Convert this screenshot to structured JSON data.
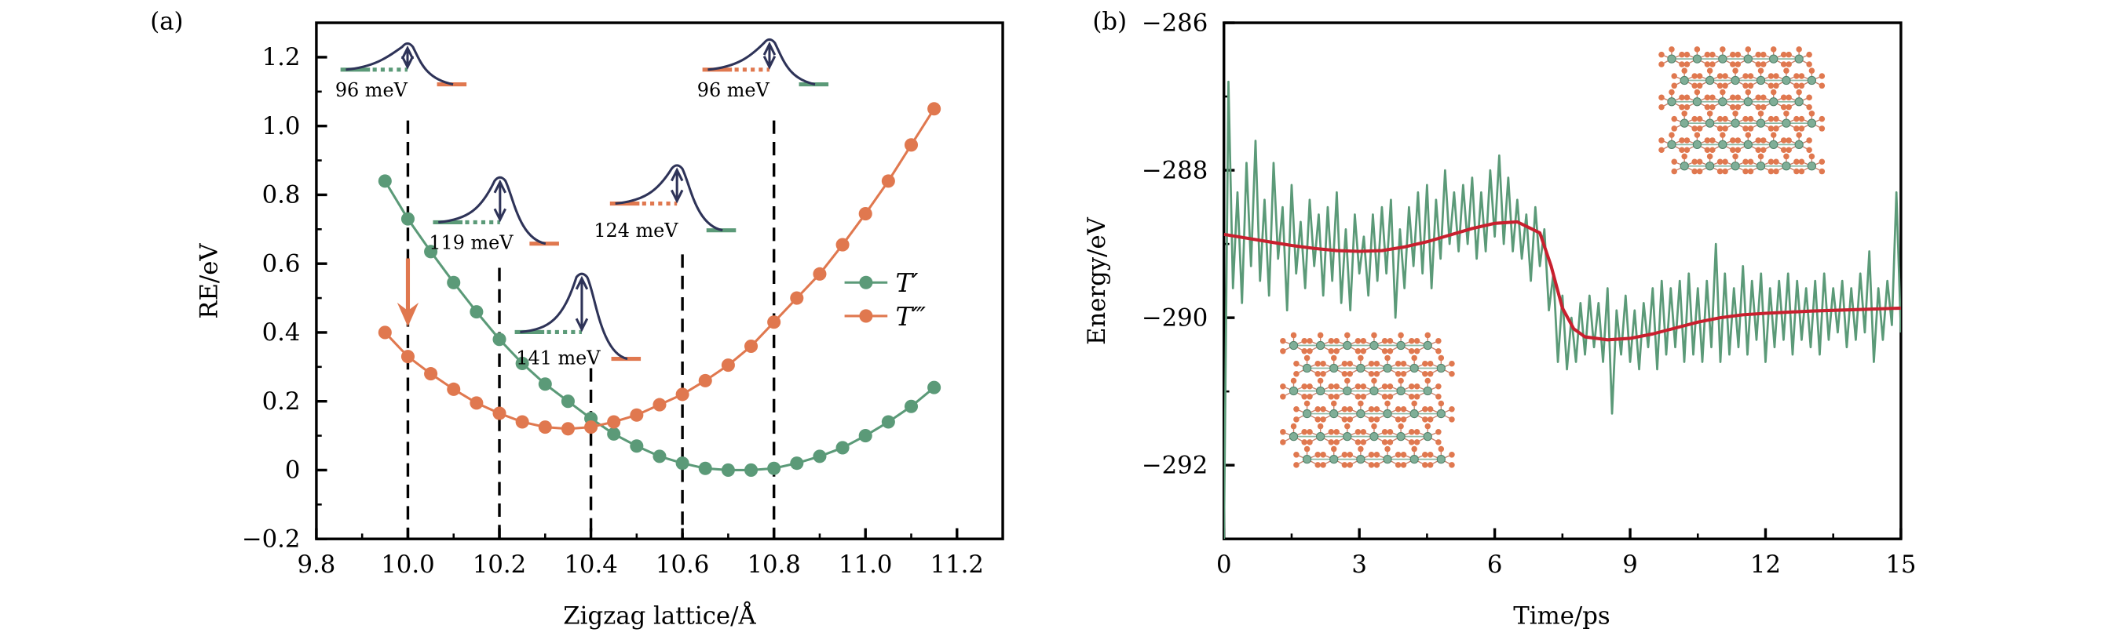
{
  "colors": {
    "green": "#5b9a78",
    "orange": "#e0784f",
    "red": "#c8202e",
    "navy": "#2e3358",
    "axis": "#000000"
  },
  "chart_data": [
    {
      "panel_label": "(a)",
      "type": "line",
      "xlabel": "Zigzag lattice/Å",
      "ylabel": "RE/eV",
      "xlim": [
        9.8,
        11.3
      ],
      "ylim": [
        -0.2,
        1.3
      ],
      "xticks": [
        "9.8",
        "10.0",
        "10.2",
        "10.4",
        "10.6",
        "10.8",
        "11.0",
        "11.2"
      ],
      "yticks": [
        "−0.2",
        "0",
        "0.2",
        "0.4",
        "0.6",
        "0.8",
        "1.0",
        "1.2"
      ],
      "grid": false,
      "legend_position": "right",
      "x": [
        9.95,
        10.0,
        10.05,
        10.1,
        10.15,
        10.2,
        10.25,
        10.3,
        10.35,
        10.4,
        10.45,
        10.5,
        10.55,
        10.6,
        10.65,
        10.7,
        10.75,
        10.8,
        10.85,
        10.9,
        10.95,
        11.0,
        11.05,
        11.1,
        11.15
      ],
      "series": [
        {
          "name": "T′",
          "color": "#5b9a78",
          "values": [
            0.84,
            0.73,
            0.635,
            0.545,
            0.46,
            0.38,
            0.31,
            0.25,
            0.2,
            0.15,
            0.105,
            0.07,
            0.04,
            0.02,
            0.005,
            0.0,
            0.0,
            0.005,
            0.02,
            0.04,
            0.065,
            0.1,
            0.14,
            0.185,
            0.24
          ]
        },
        {
          "name": "T‴",
          "color": "#e0784f",
          "values": [
            0.4,
            0.33,
            0.28,
            0.235,
            0.195,
            0.165,
            0.14,
            0.125,
            0.12,
            0.125,
            0.14,
            0.16,
            0.19,
            0.22,
            0.26,
            0.305,
            0.36,
            0.43,
            0.5,
            0.57,
            0.655,
            0.745,
            0.84,
            0.945,
            1.05
          ]
        }
      ],
      "reference_lines_x": [
        10.0,
        10.2,
        10.4,
        10.6,
        10.8
      ],
      "annotations": [
        {
          "text": "96 meV",
          "x": 10.0,
          "from": "T′",
          "to": "T‴"
        },
        {
          "text": "119 meV",
          "x": 10.2,
          "from": "T′",
          "to": "T‴"
        },
        {
          "text": "141 meV",
          "x": 10.4,
          "from": "T′",
          "to": "T‴"
        },
        {
          "text": "124 meV",
          "x": 10.6,
          "from": "T‴",
          "to": "T′"
        },
        {
          "text": "96 meV",
          "x": 10.8,
          "from": "T‴",
          "to": "T′"
        }
      ]
    },
    {
      "panel_label": "(b)",
      "type": "line",
      "xlabel": "Time/ps",
      "ylabel": "Energy/eV",
      "xlim": [
        0,
        15
      ],
      "ylim": [
        -293,
        -286
      ],
      "xticks": [
        "0",
        "3",
        "6",
        "9",
        "12",
        "15"
      ],
      "yticks": [
        "−292",
        "−290",
        "−288",
        "−286"
      ],
      "grid": false,
      "series": [
        {
          "color": "#5b9a78",
          "x": [
            0,
            0.1,
            0.2,
            0.3,
            0.4,
            0.5,
            0.6,
            0.7,
            0.8,
            0.9,
            1,
            1.1,
            1.2,
            1.3,
            1.4,
            1.5,
            1.6,
            1.7,
            1.8,
            1.9,
            2,
            2.1,
            2.2,
            2.3,
            2.4,
            2.5,
            2.6,
            2.7,
            2.8,
            2.9,
            3,
            3.1,
            3.2,
            3.3,
            3.4,
            3.5,
            3.6,
            3.7,
            3.8,
            3.9,
            4,
            4.1,
            4.2,
            4.3,
            4.4,
            4.5,
            4.6,
            4.7,
            4.8,
            4.9,
            5,
            5.1,
            5.2,
            5.3,
            5.4,
            5.5,
            5.6,
            5.7,
            5.8,
            5.9,
            6,
            6.1,
            6.2,
            6.3,
            6.4,
            6.5,
            6.6,
            6.7,
            6.8,
            6.9,
            7,
            7.1,
            7.2,
            7.3,
            7.4,
            7.5,
            7.6,
            7.7,
            7.8,
            7.9,
            8,
            8.1,
            8.2,
            8.3,
            8.4,
            8.5,
            8.6,
            8.7,
            8.8,
            8.9,
            9,
            9.1,
            9.2,
            9.3,
            9.4,
            9.5,
            9.6,
            9.7,
            9.8,
            9.9,
            10,
            10.1,
            10.2,
            10.3,
            10.4,
            10.5,
            10.6,
            10.7,
            10.8,
            10.9,
            11,
            11.1,
            11.2,
            11.3,
            11.4,
            11.5,
            11.6,
            11.7,
            11.8,
            11.9,
            12,
            12.1,
            12.2,
            12.3,
            12.4,
            12.5,
            12.6,
            12.7,
            12.8,
            12.9,
            13,
            13.1,
            13.2,
            13.3,
            13.4,
            13.5,
            13.6,
            13.7,
            13.8,
            13.9,
            14,
            14.1,
            14.2,
            14.3,
            14.4,
            14.5,
            14.6,
            14.7,
            14.8,
            14.9,
            15
          ],
          "values": [
            -293.0,
            -286.8,
            -289.6,
            -288.3,
            -289.8,
            -287.9,
            -289.3,
            -287.6,
            -289.5,
            -288.4,
            -289.7,
            -287.9,
            -289.2,
            -288.5,
            -289.9,
            -288.2,
            -289.4,
            -288.7,
            -289.6,
            -288.4,
            -289.3,
            -288.6,
            -289.7,
            -288.5,
            -289.5,
            -288.3,
            -289.8,
            -288.8,
            -289.9,
            -288.6,
            -289.4,
            -288.9,
            -289.7,
            -288.6,
            -289.5,
            -288.5,
            -289.4,
            -288.4,
            -290.0,
            -288.8,
            -289.6,
            -288.5,
            -289.3,
            -288.3,
            -289.4,
            -288.2,
            -289.6,
            -288.4,
            -289.2,
            -288.0,
            -289.0,
            -288.3,
            -289.1,
            -288.2,
            -289.0,
            -288.1,
            -289.2,
            -288.3,
            -289.1,
            -288.0,
            -288.9,
            -287.8,
            -289.0,
            -288.1,
            -289.1,
            -288.4,
            -289.2,
            -288.6,
            -289.5,
            -288.5,
            -289.3,
            -288.8,
            -289.9,
            -289.4,
            -290.6,
            -289.7,
            -290.7,
            -290.0,
            -290.6,
            -289.8,
            -290.5,
            -289.7,
            -290.4,
            -289.8,
            -290.6,
            -289.6,
            -291.3,
            -289.9,
            -290.5,
            -289.7,
            -290.6,
            -289.9,
            -290.7,
            -289.8,
            -290.4,
            -289.6,
            -290.7,
            -289.5,
            -290.5,
            -289.6,
            -290.4,
            -289.5,
            -290.6,
            -289.4,
            -290.5,
            -289.6,
            -290.6,
            -289.5,
            -290.4,
            -289.0,
            -290.6,
            -289.4,
            -290.5,
            -289.6,
            -290.4,
            -289.3,
            -290.5,
            -289.5,
            -290.3,
            -289.4,
            -290.6,
            -289.6,
            -290.4,
            -289.5,
            -290.3,
            -289.4,
            -290.5,
            -289.5,
            -290.3,
            -289.6,
            -290.4,
            -289.5,
            -290.5,
            -289.4,
            -290.3,
            -289.6,
            -290.2,
            -289.5,
            -290.4,
            -289.6,
            -290.3,
            -289.4,
            -290.2,
            -289.1,
            -290.6,
            -289.6,
            -290.3,
            -289.5,
            -290.1,
            -288.3,
            -290.2
          ]
        },
        {
          "color": "#c8202e",
          "x": [
            0,
            0.5,
            1,
            1.5,
            2,
            2.5,
            3,
            3.5,
            4,
            4.5,
            5,
            5.5,
            6,
            6.5,
            7,
            7.25,
            7.5,
            7.75,
            8,
            8.5,
            9,
            9.5,
            10,
            10.5,
            11,
            11.5,
            12,
            13,
            14,
            15
          ],
          "values": [
            -288.87,
            -288.92,
            -288.97,
            -289.02,
            -289.06,
            -289.09,
            -289.1,
            -289.09,
            -289.04,
            -288.97,
            -288.88,
            -288.79,
            -288.72,
            -288.7,
            -288.85,
            -289.3,
            -289.87,
            -290.15,
            -290.26,
            -290.3,
            -290.28,
            -290.22,
            -290.14,
            -290.06,
            -290.0,
            -289.96,
            -289.94,
            -289.91,
            -289.89,
            -289.87
          ]
        }
      ]
    }
  ]
}
